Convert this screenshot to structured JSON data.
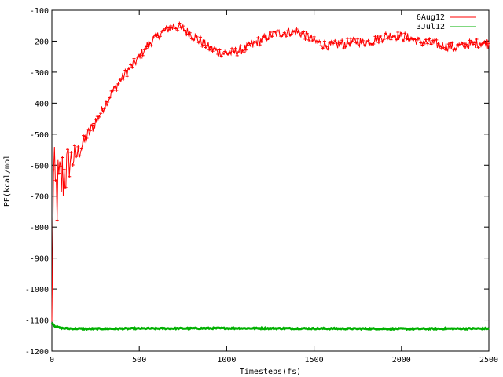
{
  "chart_data": {
    "type": "line",
    "xlabel": "Timesteps(fs)",
    "ylabel": "PE(kcal/mol",
    "xlim": [
      0,
      2500
    ],
    "ylim": [
      -1200,
      -100
    ],
    "x_ticks": [
      "0",
      "500",
      "1000",
      "1500",
      "2000",
      "2500"
    ],
    "y_ticks": [
      "-1200",
      "-1100",
      "-1000",
      "-900",
      "-800",
      "-700",
      "-600",
      "-500",
      "-400",
      "-300",
      "-200",
      "-100"
    ],
    "grid": false,
    "legend_position": "top-right",
    "series": [
      {
        "name": "6Aug12",
        "color": "#ff0000",
        "x": [
          0,
          5,
          10,
          20,
          40,
          60,
          80,
          100,
          150,
          200,
          250,
          300,
          350,
          400,
          450,
          500,
          550,
          600,
          650,
          700,
          750,
          800,
          850,
          900,
          950,
          1000,
          1050,
          1100,
          1150,
          1200,
          1250,
          1300,
          1350,
          1400,
          1450,
          1500,
          1550,
          1600,
          1650,
          1700,
          1750,
          1800,
          1850,
          1900,
          1950,
          2000,
          2050,
          2100,
          2150,
          2200,
          2250,
          2300,
          2350,
          2400,
          2450,
          2500
        ],
        "y": [
          -1100,
          -800,
          -650,
          -700,
          -680,
          -640,
          -620,
          -590,
          -560,
          -510,
          -460,
          -410,
          -360,
          -320,
          -285,
          -250,
          -210,
          -185,
          -165,
          -150,
          -160,
          -180,
          -200,
          -220,
          -235,
          -240,
          -235,
          -225,
          -210,
          -195,
          -180,
          -175,
          -170,
          -170,
          -180,
          -200,
          -210,
          -215,
          -210,
          -205,
          -200,
          -205,
          -195,
          -185,
          -180,
          -185,
          -190,
          -200,
          -205,
          -210,
          -215,
          -220,
          -215,
          -210,
          -205,
          -210
        ],
        "noise": [
          0,
          120,
          130,
          140,
          130,
          110,
          90,
          60,
          30,
          25,
          20,
          15,
          15,
          15,
          15,
          15,
          15,
          15,
          15,
          15,
          15,
          15,
          15,
          15,
          15,
          15,
          15,
          15,
          15,
          15,
          15,
          15,
          15,
          15,
          15,
          15,
          15,
          15,
          15,
          15,
          15,
          15,
          15,
          15,
          15,
          15,
          15,
          15,
          15,
          15,
          15,
          15,
          15,
          15,
          15,
          15
        ]
      },
      {
        "name": "3Jul12",
        "color": "#00b000",
        "x": [
          0,
          10,
          20,
          40,
          60,
          100,
          200,
          500,
          1000,
          1500,
          2000,
          2500
        ],
        "y": [
          -1108,
          -1115,
          -1120,
          -1124,
          -1126,
          -1127,
          -1128,
          -1127,
          -1126,
          -1127,
          -1128,
          -1127
        ],
        "noise": [
          0,
          2,
          2,
          2,
          2,
          2,
          2,
          2,
          2,
          2,
          2,
          2
        ]
      }
    ]
  }
}
